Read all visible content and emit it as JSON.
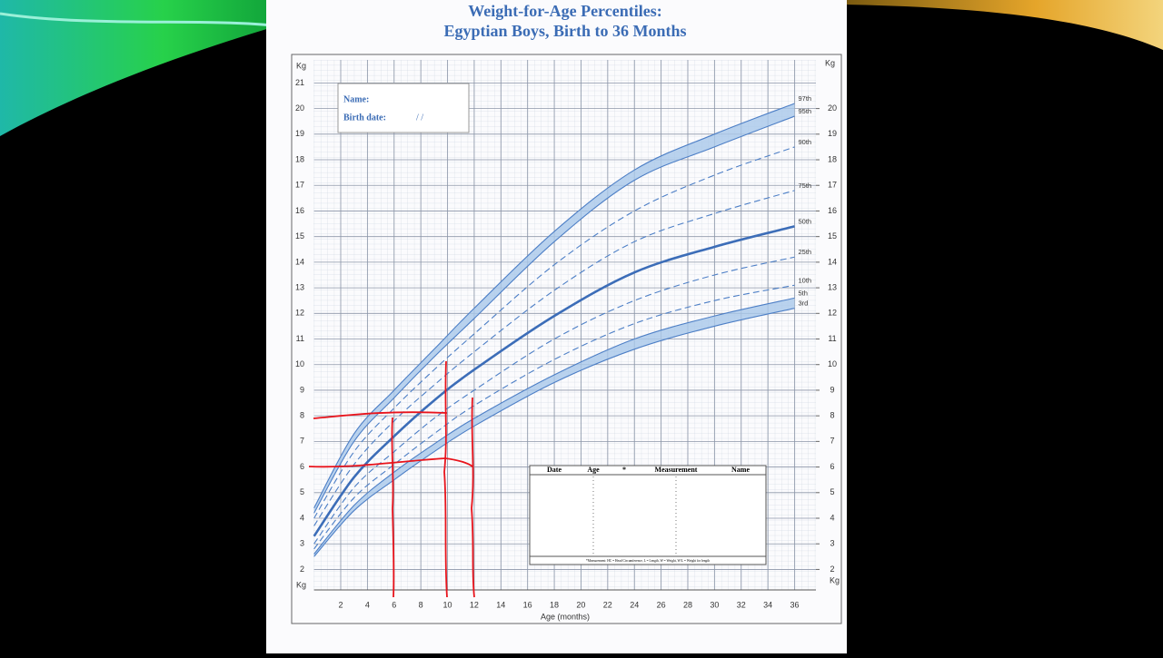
{
  "chart_data": {
    "type": "line",
    "title": "Weight-for-Age Percentiles:",
    "subtitle": "Egyptian Boys, Birth to 36 Months",
    "xlabel": "Age (months)",
    "ylabel": "Kg",
    "y2label": "Kg",
    "x": [
      0,
      3,
      6,
      9,
      12,
      18,
      24,
      30,
      36
    ],
    "xlim": [
      0,
      37.6
    ],
    "xticks": [
      2,
      4,
      6,
      8,
      10,
      12,
      14,
      16,
      18,
      20,
      22,
      24,
      26,
      28,
      30,
      32,
      34,
      36
    ],
    "ylim": [
      1.2,
      21.9
    ],
    "yticks": [
      2,
      3,
      4,
      5,
      6,
      7,
      8,
      9,
      10,
      11,
      12,
      13,
      14,
      15,
      16,
      17,
      18,
      19,
      20,
      21
    ],
    "y2lim": [
      1.2,
      21.9
    ],
    "y2ticks": [
      2,
      3,
      4,
      5,
      6,
      7,
      8,
      9,
      10,
      11,
      12,
      13,
      14,
      15,
      16,
      17,
      18,
      19,
      20
    ],
    "grid": true,
    "band_color": "#a9c8ea",
    "series": [
      {
        "name": "97th",
        "color": "#4d7fc6",
        "line_style": "solid",
        "fill_to_next": true,
        "values": [
          4.4,
          7.3,
          9.0,
          10.6,
          12.2,
          15.2,
          17.6,
          19.0,
          20.2
        ]
      },
      {
        "name": "95th",
        "color": "#4d7fc6",
        "line_style": "solid",
        "values": [
          4.2,
          7.0,
          8.7,
          10.3,
          11.8,
          14.8,
          17.2,
          18.5,
          19.7
        ]
      },
      {
        "name": "90th",
        "color": "#4d7fc6",
        "line_style": "dashed",
        "values": [
          4.0,
          6.6,
          8.3,
          9.8,
          11.2,
          13.9,
          16.0,
          17.4,
          18.5
        ]
      },
      {
        "name": "75th",
        "color": "#4d7fc6",
        "line_style": "dashed",
        "values": [
          3.7,
          6.1,
          7.8,
          9.2,
          10.5,
          12.9,
          14.8,
          15.9,
          16.8
        ]
      },
      {
        "name": "50th",
        "color": "#3c6db8",
        "line_style": "bold",
        "values": [
          3.3,
          5.6,
          7.2,
          8.6,
          9.8,
          11.9,
          13.6,
          14.6,
          15.4
        ]
      },
      {
        "name": "25th",
        "color": "#4d7fc6",
        "line_style": "dashed",
        "values": [
          3.0,
          5.2,
          6.6,
          7.9,
          9.0,
          11.0,
          12.5,
          13.5,
          14.2
        ]
      },
      {
        "name": "10th",
        "color": "#4d7fc6",
        "line_style": "dashed",
        "values": [
          2.8,
          4.8,
          6.1,
          7.3,
          8.4,
          10.2,
          11.6,
          12.5,
          13.1
        ]
      },
      {
        "name": "5th",
        "color": "#4d7fc6",
        "line_style": "solid",
        "fill_to_next": true,
        "values": [
          2.6,
          4.5,
          5.8,
          6.9,
          7.9,
          9.6,
          11.0,
          11.9,
          12.6
        ]
      },
      {
        "name": "3rd",
        "color": "#4d7fc6",
        "line_style": "solid",
        "values": [
          2.5,
          4.3,
          5.5,
          6.6,
          7.6,
          9.3,
          10.6,
          11.5,
          12.2
        ]
      }
    ]
  },
  "form": {
    "name_label": "Name:",
    "birth_date_label": "Birth date:",
    "date_slashes": "/ /",
    "table": {
      "headers": [
        "Date",
        "Age",
        "*",
        "Measurement",
        "Name"
      ],
      "footnote": "*Measurement: HC = Head Circumference, L = Length, W = Weight, W/L = Weight for length"
    }
  }
}
